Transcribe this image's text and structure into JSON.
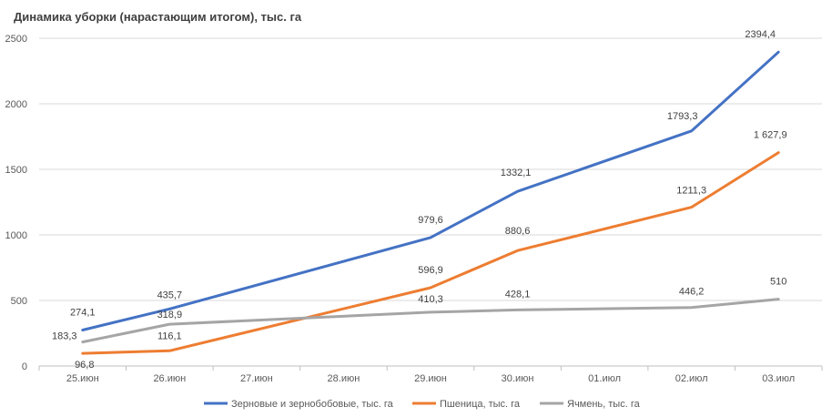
{
  "chart_data": {
    "type": "line",
    "title": "Динамика уборки (нарастающим итогом), тыс. га",
    "categories": [
      "25.июн",
      "26.июн",
      "27.июн",
      "28.июн",
      "29.июн",
      "30.июн",
      "01.июл",
      "02.июл",
      "03.июл"
    ],
    "y_ticks": [
      "0",
      "500",
      "1000",
      "1500",
      "2000",
      "2500"
    ],
    "ylim": [
      0,
      2500
    ],
    "grid": true,
    "legend_position": "bottom",
    "series": [
      {
        "name": "Зерновые и зернобобовые, тыс. га",
        "color": "#4472C4",
        "values": [
          274.1,
          435.7,
          null,
          null,
          979.6,
          1332.1,
          null,
          1793.3,
          2394.4
        ],
        "labels": [
          "274,1",
          "435,7",
          "",
          "",
          "979,6",
          "1332,1",
          "",
          "1793,3",
          "2394,4"
        ]
      },
      {
        "name": "Пшеница, тыс. га",
        "color": "#ED7D31",
        "values": [
          96.8,
          116.1,
          null,
          null,
          596.9,
          880.6,
          null,
          1211.3,
          1627.9
        ],
        "labels": [
          "96,8",
          "116,1",
          "",
          "",
          "596,9",
          "880,6",
          "",
          "1211,3",
          "1 627,9"
        ]
      },
      {
        "name": "Ячмень, тыс. га",
        "color": "#A5A5A5",
        "values": [
          183.3,
          318.9,
          null,
          null,
          410.3,
          428.1,
          null,
          446.2,
          510
        ],
        "labels": [
          "183,3",
          "318,9",
          "",
          "",
          "410,3",
          "428,1",
          "",
          "446,2",
          "510"
        ]
      }
    ]
  }
}
